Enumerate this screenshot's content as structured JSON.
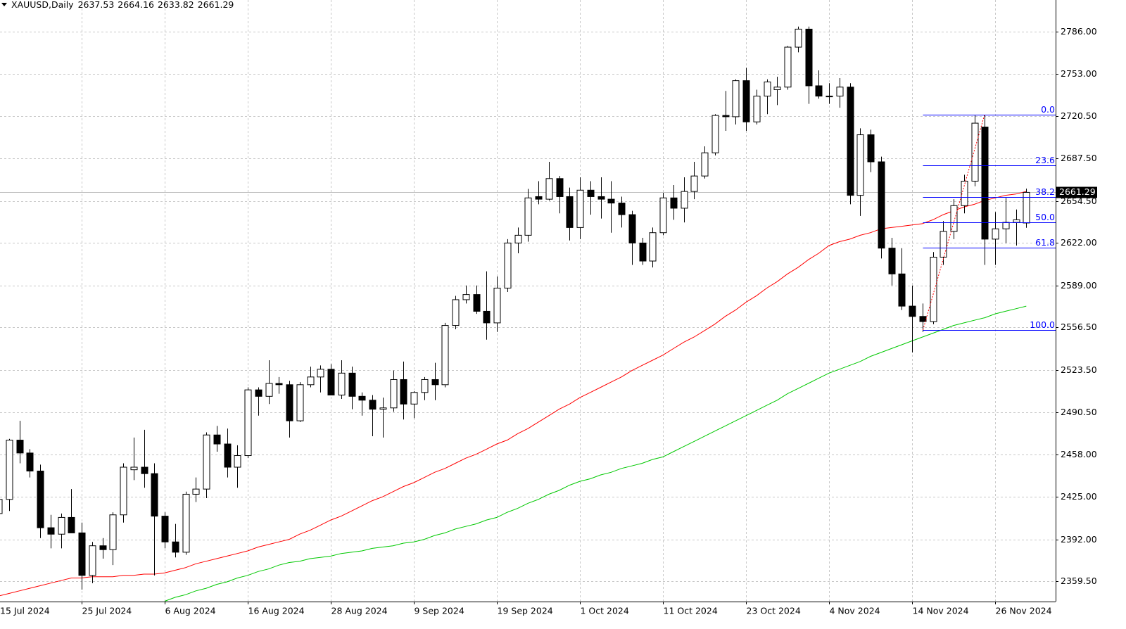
{
  "chart_data": {
    "type": "candlestick",
    "symbol": "XAUUSD,Daily",
    "categories": [
      "15 Jul 2024",
      null,
      null,
      null,
      null,
      null,
      null,
      null,
      "25 Jul 2024",
      null,
      null,
      null,
      null,
      null,
      null,
      null,
      "6 Aug 2024",
      null,
      null,
      null,
      null,
      null,
      null,
      null,
      "16 Aug 2024",
      null,
      null,
      null,
      null,
      null,
      null,
      null,
      "28 Aug 2024",
      null,
      null,
      null,
      null,
      null,
      null,
      null,
      "9 Sep 2024",
      null,
      null,
      null,
      null,
      null,
      null,
      null,
      "19 Sep 2024",
      null,
      null,
      null,
      null,
      null,
      null,
      null,
      "1 Oct 2024",
      null,
      null,
      null,
      null,
      null,
      null,
      null,
      "11 Oct 2024",
      null,
      null,
      null,
      null,
      null,
      null,
      null,
      "23 Oct 2024",
      null,
      null,
      null,
      null,
      null,
      null,
      null,
      "4 Nov 2024",
      null,
      null,
      null,
      null,
      null,
      null,
      null,
      "14 Nov 2024",
      null,
      null,
      null,
      null,
      null,
      null,
      null,
      "26 Nov 2024",
      null,
      null,
      null
    ],
    "open": [
      2412,
      2423,
      2469,
      2459,
      2445,
      2401,
      2396,
      2409,
      2397,
      2364,
      2387,
      2384,
      2411,
      2446,
      2448,
      2443,
      2410,
      2390,
      2382,
      2427,
      2431,
      2473,
      2466,
      2448,
      2457,
      2508,
      2503,
      2513,
      2512,
      2484,
      2512,
      2518,
      2524,
      2504,
      2521,
      2503,
      2500,
      2493,
      2494,
      2516,
      2497,
      2506,
      2516,
      2512,
      2558,
      2578,
      2582,
      2569,
      2560,
      2587,
      2622,
      2628,
      2658,
      2656,
      2672,
      2658,
      2634,
      2663,
      2658,
      2656,
      2653,
      2644,
      2622,
      2608,
      2630,
      2657,
      2649,
      2662,
      2674,
      2692,
      2721,
      2720,
      2748,
      2716,
      2736,
      2741,
      2743,
      2774,
      2788,
      2744,
      2736,
      2736,
      2743,
      2659,
      2706,
      2685,
      2618,
      2598,
      2573,
      2565,
      2561,
      2611,
      2631,
      2651,
      2670,
      2712,
      2625,
      2633,
      2638,
      2637.53
    ],
    "high": [
      2440,
      2470,
      2484,
      2462,
      2450,
      2411,
      2412,
      2431,
      2405,
      2390,
      2393,
      2413,
      2451,
      2471,
      2477,
      2451,
      2413,
      2404,
      2429,
      2440,
      2475,
      2480,
      2478,
      2465,
      2510,
      2510,
      2531,
      2518,
      2515,
      2514,
      2526,
      2527,
      2528,
      2531,
      2526,
      2506,
      2504,
      2502,
      2523,
      2530,
      2507,
      2518,
      2529,
      2560,
      2581,
      2589,
      2589,
      2600,
      2596,
      2625,
      2634,
      2664,
      2670,
      2685,
      2674,
      2665,
      2673,
      2670,
      2673,
      2670,
      2658,
      2647,
      2626,
      2634,
      2661,
      2667,
      2673,
      2685,
      2697,
      2722,
      2740,
      2749,
      2758,
      2741,
      2749,
      2751,
      2775,
      2790,
      2790,
      2756,
      2746,
      2750,
      2746,
      2711,
      2710,
      2689,
      2626,
      2618,
      2589,
      2575,
      2615,
      2639,
      2656,
      2675,
      2721,
      2721,
      2646,
      2657,
      2648,
      2664.16
    ],
    "low": [
      2409,
      2414,
      2451,
      2440,
      2393,
      2385,
      2385,
      2398,
      2353,
      2358,
      2377,
      2372,
      2405,
      2438,
      2432,
      2364,
      2385,
      2378,
      2380,
      2421,
      2424,
      2460,
      2440,
      2432,
      2455,
      2488,
      2497,
      2505,
      2471,
      2483,
      2510,
      2506,
      2504,
      2501,
      2493,
      2488,
      2472,
      2471,
      2491,
      2485,
      2486,
      2500,
      2500,
      2510,
      2555,
      2575,
      2567,
      2547,
      2553,
      2584,
      2614,
      2623,
      2652,
      2655,
      2645,
      2624,
      2625,
      2644,
      2641,
      2630,
      2634,
      2605,
      2605,
      2603,
      2628,
      2640,
      2638,
      2656,
      2672,
      2690,
      2709,
      2714,
      2709,
      2714,
      2722,
      2729,
      2741,
      2770,
      2730,
      2734,
      2730,
      2727,
      2652,
      2643,
      2677,
      2610,
      2589,
      2570,
      2537,
      2553,
      2559,
      2605,
      2625,
      2645,
      2666,
      2605,
      2605,
      2622,
      2620,
      2633.82
    ],
    "close": [
      2423,
      2469,
      2459,
      2445,
      2401,
      2396,
      2409,
      2397,
      2364,
      2387,
      2384,
      2411,
      2448,
      2448,
      2443,
      2410,
      2390,
      2382,
      2427,
      2431,
      2473,
      2466,
      2448,
      2457,
      2508,
      2503,
      2513,
      2512,
      2484,
      2512,
      2518,
      2524,
      2504,
      2521,
      2503,
      2500,
      2493,
      2494,
      2516,
      2497,
      2506,
      2516,
      2512,
      2558,
      2578,
      2582,
      2569,
      2560,
      2587,
      2622,
      2628,
      2657,
      2656,
      2672,
      2658,
      2634,
      2663,
      2658,
      2656,
      2653,
      2644,
      2622,
      2608,
      2630,
      2657,
      2649,
      2662,
      2674,
      2692,
      2721,
      2720,
      2748,
      2716,
      2736,
      2747,
      2743,
      2774,
      2788,
      2744,
      2736,
      2736,
      2743,
      2659,
      2706,
      2685,
      2618,
      2598,
      2573,
      2565,
      2561,
      2611,
      2631,
      2651,
      2670,
      2715,
      2625,
      2633,
      2638,
      2640,
      2661.29
    ],
    "up_color": "#ffffff",
    "down_color": "#000000",
    "series": [
      {
        "color": "#ff0000",
        "values": [
          2348,
          2350,
          2352,
          2354,
          2356,
          2358,
          2360,
          2362,
          2362,
          2363,
          2363,
          2363,
          2364,
          2364,
          2365,
          2365,
          2366,
          2368,
          2370,
          2373,
          2375,
          2377,
          2379,
          2381,
          2383,
          2386,
          2388,
          2390,
          2392,
          2396,
          2399,
          2403,
          2407,
          2410,
          2414,
          2418,
          2422,
          2425,
          2429,
          2433,
          2436,
          2440,
          2444,
          2447,
          2451,
          2455,
          2458,
          2462,
          2466,
          2469,
          2474,
          2478,
          2483,
          2488,
          2493,
          2497,
          2502,
          2506,
          2510,
          2514,
          2518,
          2523,
          2527,
          2531,
          2535,
          2540,
          2545,
          2549,
          2554,
          2559,
          2565,
          2570,
          2576,
          2581,
          2587,
          2592,
          2598,
          2603,
          2609,
          2614,
          2620,
          2623,
          2625,
          2628,
          2630,
          2633,
          2634,
          2635,
          2636,
          2637,
          2640,
          2644,
          2647,
          2650,
          2652,
          2655,
          2657,
          2659,
          2660,
          2662
        ]
      },
      {
        "color": "#00c800",
        "values": [
          null,
          null,
          null,
          null,
          null,
          null,
          null,
          null,
          null,
          null,
          null,
          null,
          null,
          null,
          null,
          null,
          2344,
          2347,
          2349,
          2352,
          2354,
          2357,
          2359,
          2362,
          2364,
          2367,
          2369,
          2372,
          2374,
          2375,
          2377,
          2378,
          2379,
          2381,
          2382,
          2383,
          2385,
          2386,
          2387,
          2389,
          2390,
          2392,
          2395,
          2397,
          2400,
          2402,
          2404,
          2407,
          2409,
          2413,
          2416,
          2420,
          2423,
          2427,
          2430,
          2434,
          2437,
          2439,
          2442,
          2444,
          2447,
          2449,
          2451,
          2454,
          2456,
          2460,
          2464,
          2468,
          2472,
          2476,
          2480,
          2484,
          2488,
          2492,
          2496,
          2500,
          2505,
          2509,
          2513,
          2517,
          2521,
          2524,
          2527,
          2530,
          2534,
          2537,
          2540,
          2543,
          2546,
          2549,
          2552,
          2555,
          2558,
          2560,
          2562,
          2564,
          2567,
          2569,
          2571,
          2573
        ]
      }
    ],
    "fibonacci": {
      "high": 2721.5,
      "low": 2554.5,
      "color": "#0000ff",
      "levels": [
        {
          "value": 0,
          "label": "0.0"
        },
        {
          "value": 23.6,
          "label": "23.6"
        },
        {
          "value": 38.2,
          "label": "38.2"
        },
        {
          "value": 50,
          "label": "50.0"
        },
        {
          "value": 61.8,
          "label": "61.8"
        },
        {
          "value": 100,
          "label": "100.0"
        }
      ]
    },
    "ylim": [
      2343.7,
      2810.6
    ],
    "yticks": [
      {
        "value": 2786,
        "label": "2786.00"
      },
      {
        "value": 2753,
        "label": "2753.00"
      },
      {
        "value": 2720.5,
        "label": "2720.50"
      },
      {
        "value": 2687.5,
        "label": "2687.50"
      },
      {
        "value": 2654.5,
        "label": "2654.50"
      },
      {
        "value": 2622,
        "label": "2622.00"
      },
      {
        "value": 2589,
        "label": "2589.00"
      },
      {
        "value": 2556.5,
        "label": "2556.50"
      },
      {
        "value": 2523.5,
        "label": "2523.50"
      },
      {
        "value": 2490.5,
        "label": "2490.50"
      },
      {
        "value": 2458,
        "label": "2458.00"
      },
      {
        "value": 2425,
        "label": "2425.00"
      },
      {
        "value": 2392,
        "label": "2392.00"
      },
      {
        "value": 2359.5,
        "label": "2359.50"
      }
    ],
    "grid": true
  }
}
